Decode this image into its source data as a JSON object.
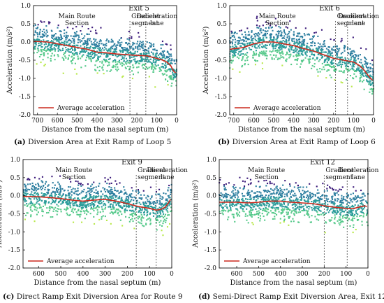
{
  "chart_data": [
    {
      "type": "scatter",
      "panel_label": "(a)",
      "caption": "Diversion Area at Exit Ramp of Loop 5",
      "title": "Exit 5",
      "xlabel": "Distance from the nasal septum (m)",
      "ylabel": "Acceleration (m/s²)",
      "xlim": [
        720,
        0
      ],
      "ylim": [
        -2.0,
        1.0
      ],
      "xticks": [
        700,
        600,
        500,
        400,
        300,
        200,
        100,
        0
      ],
      "yticks": [
        1.0,
        0.5,
        0.0,
        -0.5,
        -1.0,
        -1.5,
        -2.0
      ],
      "grid": false,
      "legend": {
        "label": "Average acceleration",
        "placement": "bottom-left"
      },
      "section_boundaries": [
        235,
        155
      ],
      "section_labels": [
        "Main Route Section",
        "Gradient segment",
        "Deceleration lane"
      ],
      "average_series": {
        "name": "Average acceleration",
        "x": [
          720,
          650,
          600,
          550,
          500,
          450,
          400,
          350,
          300,
          250,
          200,
          150,
          100,
          70,
          50,
          30,
          15,
          5
        ],
        "y": [
          0.02,
          0.0,
          -0.05,
          -0.1,
          -0.15,
          -0.2,
          -0.28,
          -0.3,
          -0.33,
          -0.35,
          -0.37,
          -0.38,
          -0.45,
          -0.5,
          -0.55,
          -0.65,
          -0.8,
          -0.85
        ]
      }
    },
    {
      "type": "scatter",
      "panel_label": "(b)",
      "caption": "Diversion Area at Exit Ramp of Loop 6",
      "title": "Exit 6",
      "xlabel": "Distance from the nasal septum (m)",
      "ylabel": "Acceleration (m/s²)",
      "xlim": [
        720,
        0
      ],
      "ylim": [
        -2.0,
        1.0
      ],
      "xticks": [
        700,
        600,
        500,
        400,
        300,
        200,
        100,
        0
      ],
      "yticks": [
        1.0,
        0.5,
        0.0,
        -0.5,
        -1.0,
        -1.5,
        -2.0
      ],
      "grid": false,
      "legend": {
        "label": "Average acceleration",
        "placement": "bottom-left"
      },
      "section_boundaries": [
        190,
        130
      ],
      "section_labels": [
        "Main Route Section",
        "Gradient segment",
        "Deceleration lane"
      ],
      "average_series": {
        "name": "Average acceleration",
        "x": [
          720,
          650,
          600,
          550,
          500,
          450,
          400,
          350,
          300,
          250,
          200,
          150,
          100,
          70,
          50,
          30,
          15,
          5
        ],
        "y": [
          -0.2,
          -0.15,
          -0.05,
          0.0,
          0.0,
          -0.05,
          -0.1,
          -0.18,
          -0.25,
          -0.35,
          -0.45,
          -0.5,
          -0.55,
          -0.65,
          -0.75,
          -0.9,
          -1.0,
          -1.05
        ]
      }
    },
    {
      "type": "scatter",
      "panel_label": "(c)",
      "caption": "Direct Ramp Exit Diversion Area for Route 9",
      "title": "Exit 9",
      "xlabel": "Distance from the nasal septum (m)",
      "ylabel": "Acceleration (m/s²)",
      "xlim": [
        670,
        0
      ],
      "ylim": [
        -2.0,
        1.0
      ],
      "xticks": [
        600,
        500,
        400,
        300,
        200,
        100,
        0
      ],
      "yticks": [
        1.0,
        0.5,
        0.0,
        -0.5,
        -1.0,
        -1.5,
        -2.0
      ],
      "grid": false,
      "legend": {
        "label": "Average acceleration",
        "placement": "bottom-left"
      },
      "section_boundaries": [
        160,
        70
      ],
      "section_labels": [
        "Main Route Section",
        "Gradient segment",
        "Deceleration lane"
      ],
      "average_series": {
        "name": "Average acceleration",
        "x": [
          670,
          600,
          550,
          500,
          450,
          400,
          350,
          300,
          250,
          200,
          150,
          100,
          70,
          50,
          30,
          15,
          5
        ],
        "y": [
          -0.02,
          -0.03,
          -0.05,
          -0.08,
          -0.12,
          -0.15,
          -0.12,
          -0.1,
          -0.15,
          -0.22,
          -0.3,
          -0.35,
          -0.4,
          -0.38,
          -0.32,
          -0.2,
          -0.1
        ]
      }
    },
    {
      "type": "scatter",
      "panel_label": "(d)",
      "caption": "Semi-Direct Ramp Exit Diversion Area, Exit 12",
      "title": "Exit 12",
      "xlabel": "Distance from the nasal septum (m)",
      "ylabel": "Acceleration (m/s²)",
      "xlim": [
        680,
        0
      ],
      "ylim": [
        -2.0,
        1.0
      ],
      "xticks": [
        600,
        500,
        400,
        300,
        200,
        100,
        0
      ],
      "yticks": [
        1.0,
        0.5,
        0.0,
        -0.5,
        -1.0,
        -1.5,
        -2.0
      ],
      "grid": false,
      "legend": {
        "label": "Average acceleration",
        "placement": "bottom-left"
      },
      "section_boundaries": [
        200,
        95
      ],
      "section_labels": [
        "Main Route Section",
        "Gradient segment",
        "Deceleration lane"
      ],
      "average_series": {
        "name": "Average acceleration",
        "x": [
          680,
          600,
          550,
          500,
          450,
          400,
          350,
          300,
          250,
          200,
          150,
          100,
          70,
          50,
          30,
          15,
          5
        ],
        "y": [
          -0.18,
          -0.18,
          -0.2,
          -0.18,
          -0.15,
          -0.15,
          -0.18,
          -0.2,
          -0.22,
          -0.28,
          -0.32,
          -0.35,
          -0.36,
          -0.33,
          -0.3,
          -0.28,
          -0.3
        ]
      }
    }
  ],
  "colors": {
    "average_line": "#cc2a1e",
    "scatter_top": "#3b1a7a",
    "scatter_mid": "#2e7fa0",
    "scatter_low": "#55c98a",
    "scatter_bottom": "#b8e84a"
  }
}
